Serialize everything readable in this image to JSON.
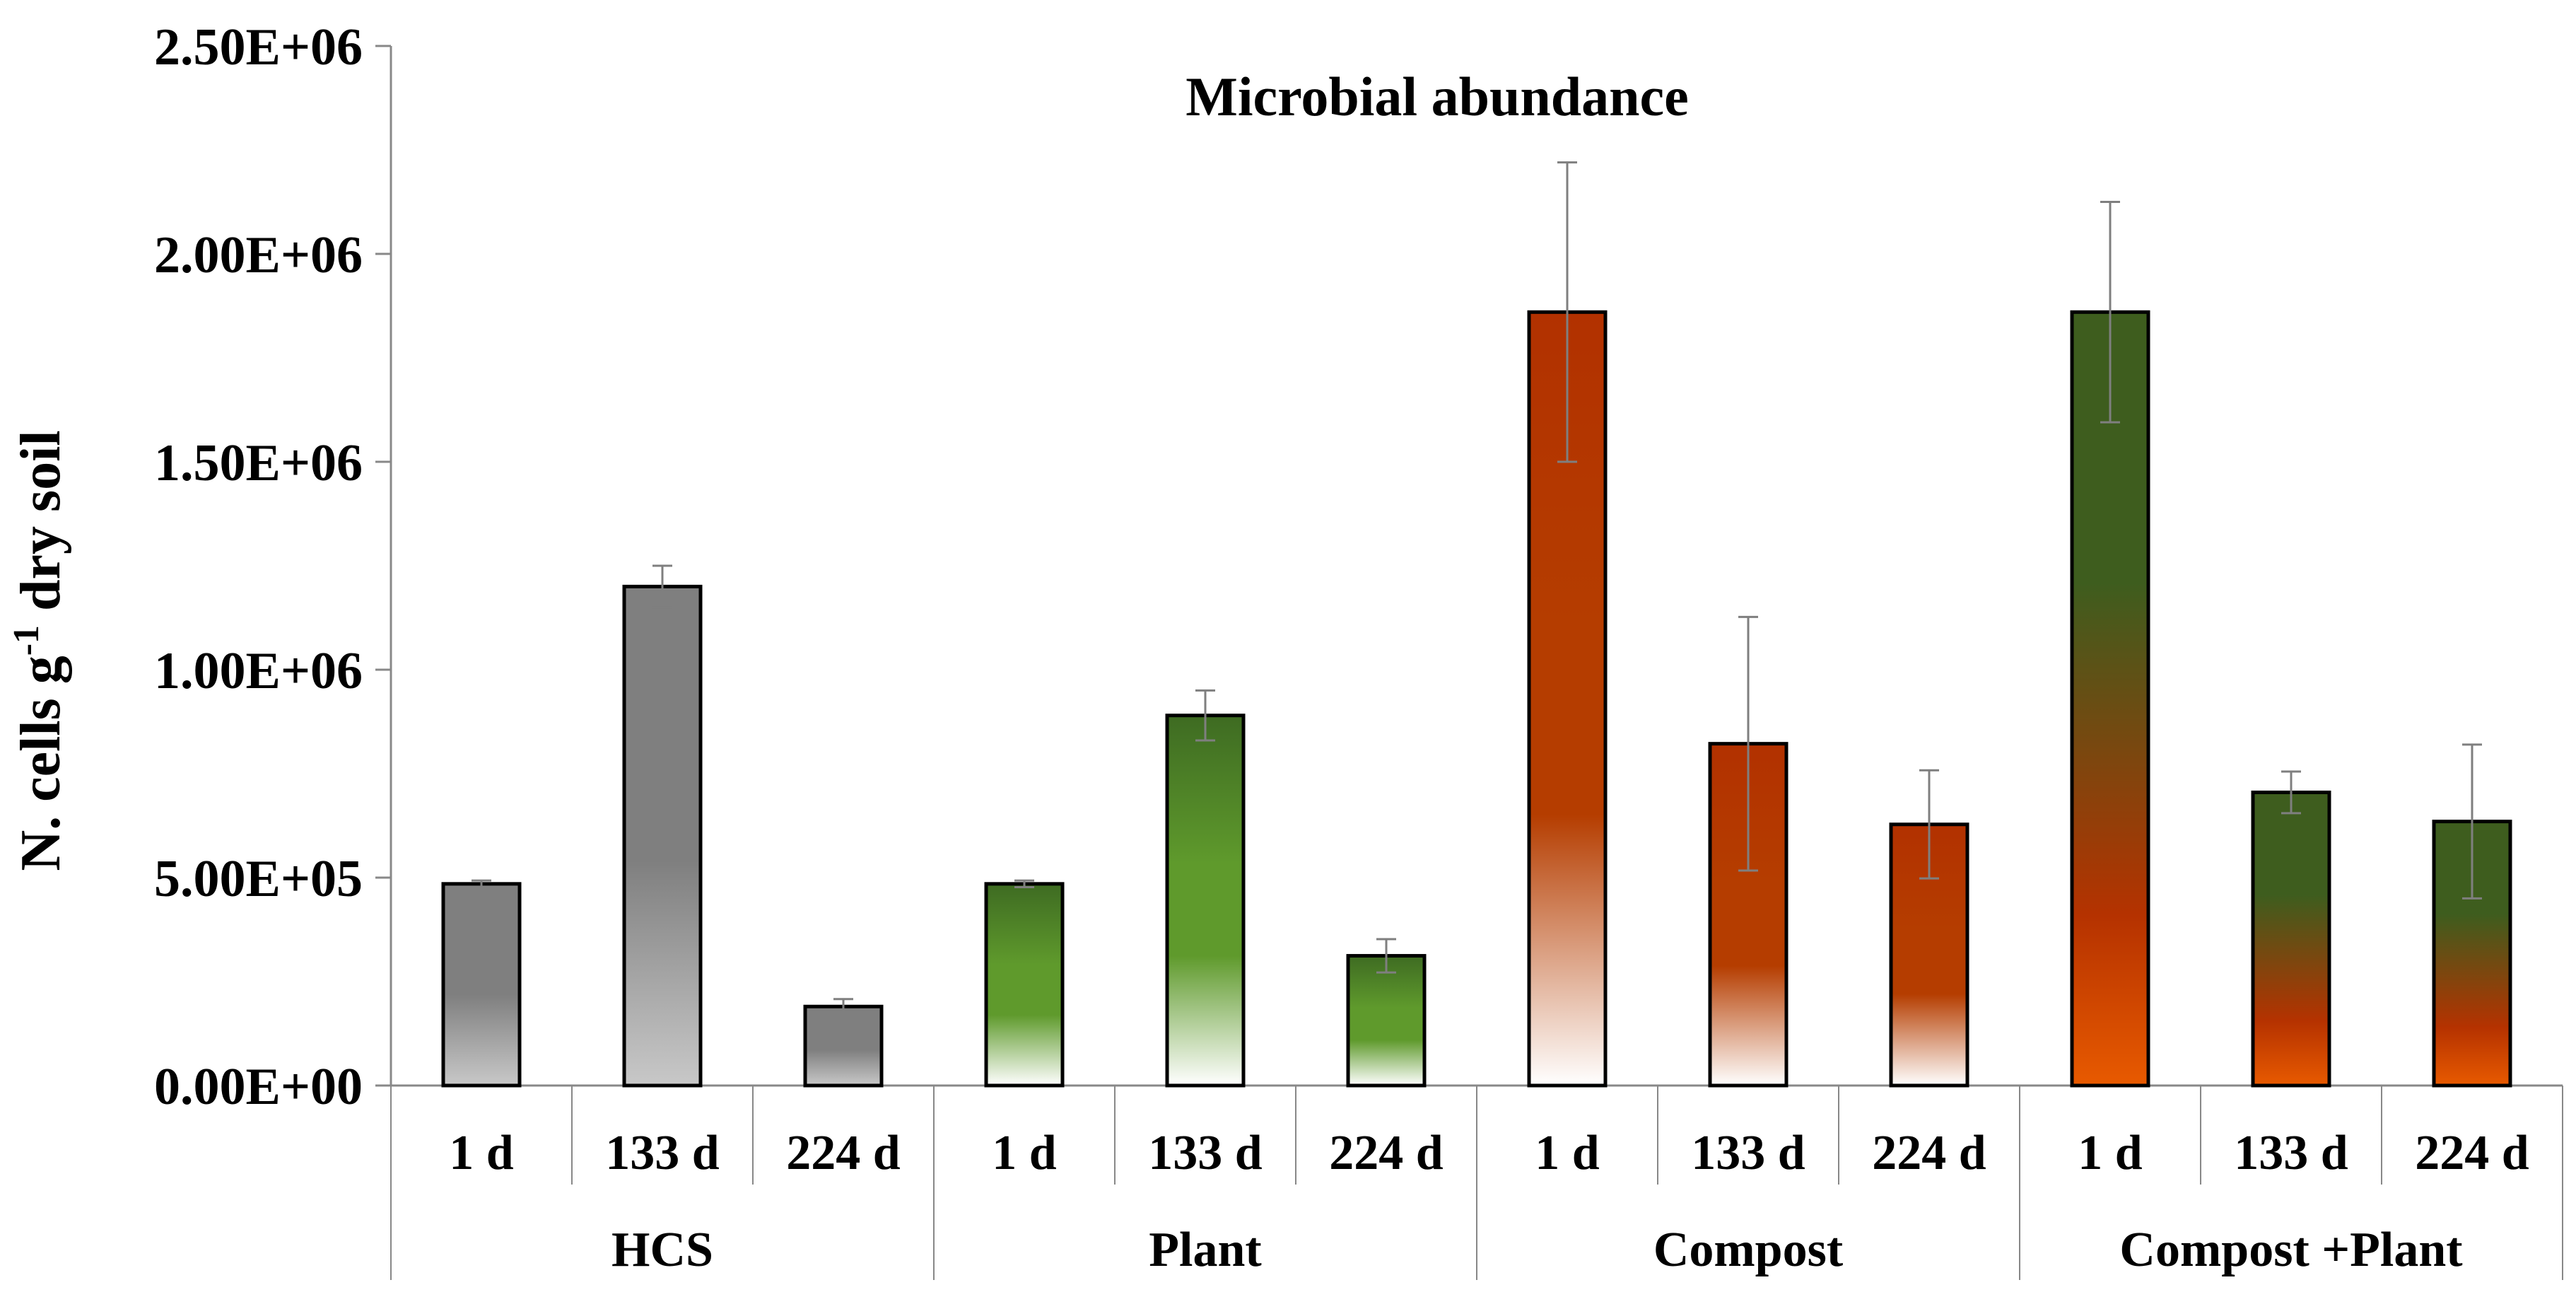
{
  "chart_data": {
    "type": "bar",
    "title": "Microbial abundance",
    "ylabel_main": "N. cells g",
    "ylabel_sup": "-1",
    "ylabel_rest": " dry soil",
    "xlabel": "",
    "ylim": [
      0,
      2500000
    ],
    "yticks": [
      0,
      500000,
      1000000,
      1500000,
      2000000,
      2500000
    ],
    "ytick_labels": [
      "0.00E+00",
      "5.00E+05",
      "1.00E+06",
      "1.50E+06",
      "2.00E+06",
      "2.50E+06"
    ],
    "grid": false,
    "groups": [
      {
        "name": "HCS",
        "colors": {
          "top": "#7f7f7f",
          "bottom": "#c8c8c8",
          "style": "gray"
        },
        "bars": [
          {
            "label": "1 d",
            "value": 485000,
            "error": 8000
          },
          {
            "label": "133 d",
            "value": 1200000,
            "error": 50000
          },
          {
            "label": "224 d",
            "value": 190000,
            "error": 18000
          }
        ]
      },
      {
        "name": "Plant",
        "colors": {
          "top": "#3e6b22",
          "mid": "#5f9a2c",
          "bottom": "#ffffff",
          "style": "fade"
        },
        "bars": [
          {
            "label": "1 d",
            "value": 485000,
            "error": 8000
          },
          {
            "label": "133 d",
            "value": 890000,
            "error": 60000
          },
          {
            "label": "224 d",
            "value": 312000,
            "error": 40000
          }
        ]
      },
      {
        "name": "Compost",
        "colors": {
          "top": "#b23100",
          "mid": "#b53d00",
          "bottom": "#ffffff",
          "style": "fade"
        },
        "bars": [
          {
            "label": "1 d",
            "value": 1860000,
            "error": 360000
          },
          {
            "label": "133 d",
            "value": 822000,
            "error": 305000
          },
          {
            "label": "224 d",
            "value": 628000,
            "error": 130000
          }
        ]
      },
      {
        "name": "Compost +Plant",
        "colors": {
          "top": "#3e5d1e",
          "mid": "#b53200",
          "bottom": "#e85a00",
          "style": "mix"
        },
        "bars": [
          {
            "label": "1 d",
            "value": 1860000,
            "error": 265000
          },
          {
            "label": "133 d",
            "value": 705000,
            "error": 50000
          },
          {
            "label": "224 d",
            "value": 635000,
            "error": 185000
          }
        ]
      }
    ]
  }
}
